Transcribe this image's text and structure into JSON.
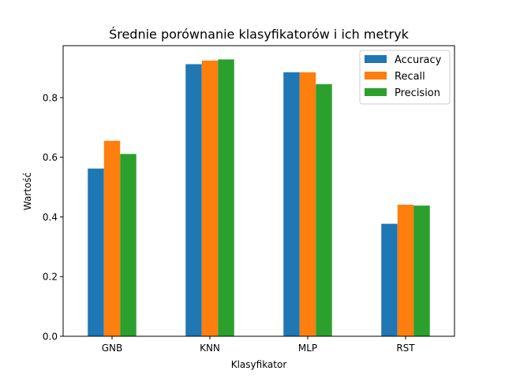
{
  "chart_data": {
    "type": "bar",
    "title": "Średnie porównanie klasyfikatorów i ich metryk",
    "xlabel": "Klasyfikator",
    "ylabel": "Wartość",
    "categories": [
      "GNB",
      "KNN",
      "MLP",
      "RST"
    ],
    "series": [
      {
        "name": "Accuracy",
        "color": "#1f77b4",
        "values": [
          0.562,
          0.912,
          0.885,
          0.377
        ]
      },
      {
        "name": "Recall",
        "color": "#ff7f0e",
        "values": [
          0.655,
          0.924,
          0.885,
          0.441
        ]
      },
      {
        "name": "Precision",
        "color": "#2ca02c",
        "values": [
          0.611,
          0.928,
          0.845,
          0.438
        ]
      }
    ],
    "ylim": [
      0,
      0.974
    ],
    "yticks": [
      0.0,
      0.2,
      0.4,
      0.6,
      0.8
    ],
    "ytick_labels": [
      "0.0",
      "0.2",
      "0.4",
      "0.6",
      "0.8"
    ],
    "grid": false,
    "legend_position": "top-right"
  }
}
